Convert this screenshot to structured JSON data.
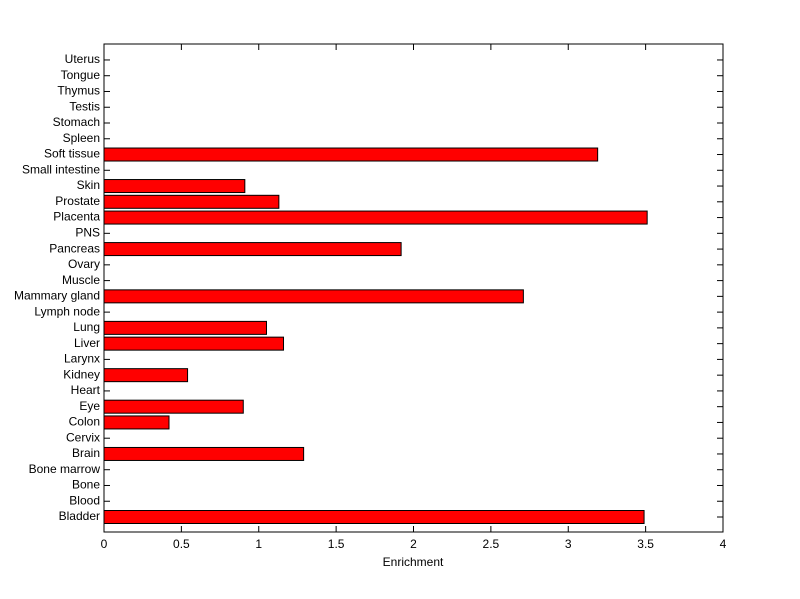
{
  "chart_data": {
    "type": "barh",
    "xlabel": "Enrichment",
    "categories": [
      "Bladder",
      "Blood",
      "Bone",
      "Bone marrow",
      "Brain",
      "Cervix",
      "Colon",
      "Eye",
      "Heart",
      "Kidney",
      "Larynx",
      "Liver",
      "Lung",
      "Lymph node",
      "Mammary gland",
      "Muscle",
      "Ovary",
      "Pancreas",
      "PNS",
      "Placenta",
      "Prostate",
      "Skin",
      "Small intestine",
      "Soft tissue",
      "Spleen",
      "Stomach",
      "Testis",
      "Thymus",
      "Tongue",
      "Uterus"
    ],
    "values": [
      3.49,
      0,
      0,
      0,
      1.29,
      0,
      0.42,
      0.9,
      0,
      0.54,
      0,
      1.16,
      1.05,
      0,
      2.71,
      0,
      0,
      1.92,
      0,
      3.51,
      1.13,
      0.91,
      0,
      3.19,
      0,
      0,
      0,
      0,
      0,
      0
    ],
    "color": "#ff0000",
    "xlim": [
      0,
      4
    ],
    "xticks": [
      0,
      0.5,
      1,
      1.5,
      2,
      2.5,
      3,
      3.5,
      4
    ]
  }
}
